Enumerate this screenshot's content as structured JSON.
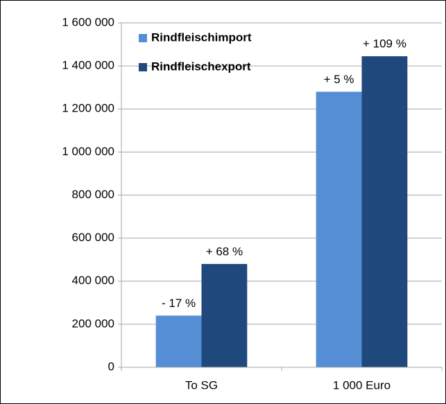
{
  "chart_data": {
    "type": "bar",
    "categories": [
      "To SG",
      "1 000 Euro"
    ],
    "series": [
      {
        "name": "Rindfleischimport",
        "color": "#558ed5",
        "values": [
          240000,
          1280000
        ],
        "change_labels": [
          "- 17 %",
          "+ 5 %"
        ]
      },
      {
        "name": "Rindfleischexport",
        "color": "#1f497d",
        "values": [
          480000,
          1445000
        ],
        "change_labels": [
          "+ 68 %",
          "+ 109 %"
        ]
      }
    ],
    "ylim": [
      0,
      1600000
    ],
    "yticks": [
      0,
      {
        "value": 200000,
        "label": "200 000"
      },
      {
        "value": 400000,
        "label": "400 000"
      },
      {
        "value": 600000,
        "label": "600 000"
      },
      {
        "value": 800000,
        "label": "800 000"
      },
      {
        "value": 1000000,
        "label": "1 000 000"
      },
      {
        "value": 1200000,
        "label": "1 200 000"
      },
      {
        "value": 1400000,
        "label": "1 400 000"
      },
      {
        "value": 1600000,
        "label": "1 600 000"
      }
    ],
    "grid": true,
    "legend": "top-left"
  }
}
